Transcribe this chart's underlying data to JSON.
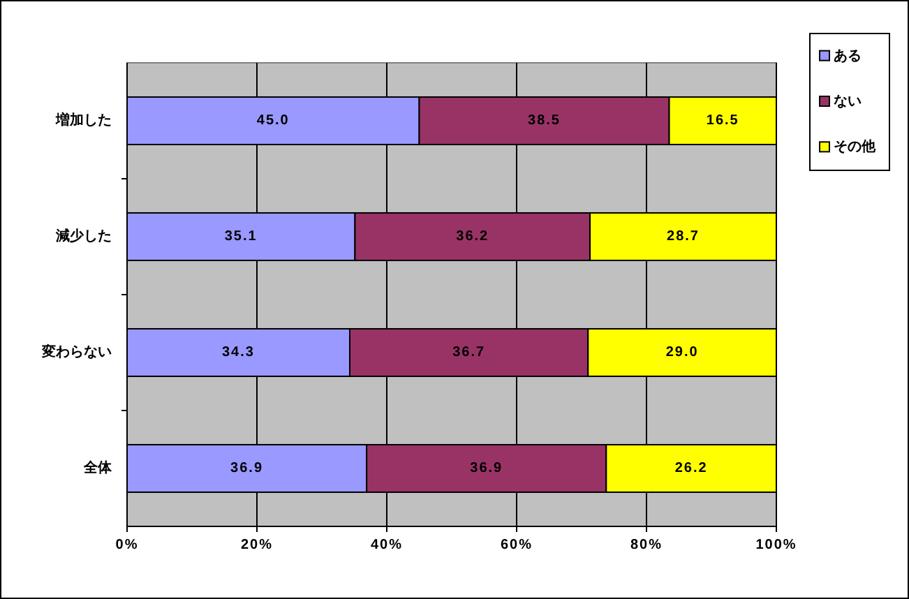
{
  "chart_data": {
    "type": "bar",
    "orientation": "horizontal",
    "stacked": true,
    "categories": [
      "増加した",
      "減少した",
      "変わらない",
      "全体"
    ],
    "series": [
      {
        "name": "ある",
        "color": "#9999ff",
        "values": [
          45.0,
          35.1,
          34.3,
          36.9
        ],
        "value_labels": [
          "45.0",
          "35.1",
          "34.3",
          "36.9"
        ]
      },
      {
        "name": "ない",
        "color": "#993366",
        "values": [
          38.5,
          36.2,
          36.7,
          36.9
        ],
        "value_labels": [
          "38.5",
          "36.2",
          "36.7",
          "36.9"
        ]
      },
      {
        "name": "その他",
        "color": "#ffff00",
        "values": [
          16.5,
          28.7,
          29.0,
          26.2
        ],
        "value_labels": [
          "16.5",
          "28.7",
          "29.0",
          "26.2"
        ]
      }
    ],
    "xlim": [
      0,
      100
    ],
    "xticks": [
      {
        "value": 0,
        "label": "0%"
      },
      {
        "value": 20,
        "label": "20%"
      },
      {
        "value": 40,
        "label": "40%"
      },
      {
        "value": 60,
        "label": "60%"
      },
      {
        "value": 80,
        "label": "80%"
      },
      {
        "value": 100,
        "label": "100%"
      }
    ],
    "grid": "x",
    "legend": "top right"
  }
}
